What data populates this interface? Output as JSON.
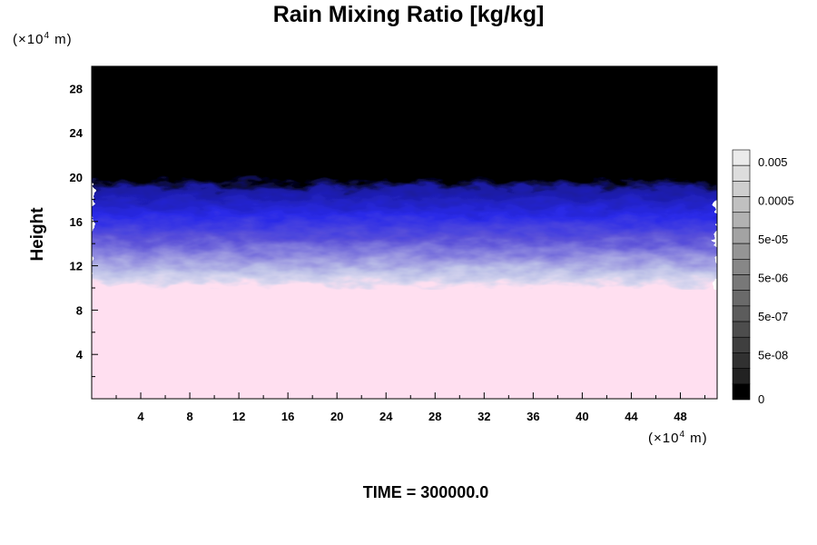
{
  "chart_data": {
    "type": "heatmap",
    "title": "Rain Mixing Ratio [kg/kg]",
    "ylabel": "Height",
    "x_unit": {
      "prefix": "(×10",
      "exp": "4",
      "suffix": " m)"
    },
    "y_unit": {
      "prefix": "(×10",
      "exp": "4",
      "suffix": " m)"
    },
    "xlim": [
      0,
      51
    ],
    "ylim": [
      0,
      30
    ],
    "x_ticks": [
      4,
      8,
      12,
      16,
      20,
      24,
      28,
      32,
      36,
      40,
      44,
      48
    ],
    "y_ticks": [
      4,
      8,
      12,
      16,
      20,
      24,
      28
    ],
    "colorbar": {
      "labels": [
        "0.005",
        "0.0005",
        "5e-05",
        "5e-06",
        "5e-07",
        "5e-08",
        "0"
      ],
      "levels": 16
    },
    "field_layers": [
      {
        "name": "lower",
        "y_from": 0,
        "y_to": 10,
        "color": "#ffdff0"
      },
      {
        "name": "transition",
        "y_from": 10,
        "y_to": 13,
        "color": "#c8c8f0"
      },
      {
        "name": "upper",
        "y_from": 13,
        "y_to": 19,
        "color": "#2020e0"
      },
      {
        "name": "top",
        "y_from": 19,
        "y_to": 30,
        "color": "#000000"
      }
    ],
    "footer": "TIME = 300000.0"
  }
}
